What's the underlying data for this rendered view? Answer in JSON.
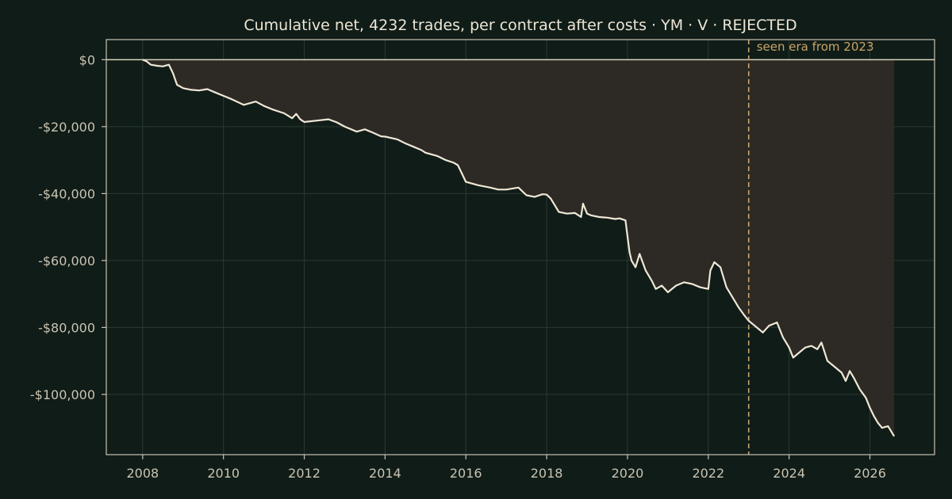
{
  "chart_data": {
    "type": "area",
    "title": "Cumulative net, 4232 trades, per contract after costs  ·  YM · V · REJECTED",
    "xlabel": "",
    "ylabel": "",
    "xlim": [
      2007.1,
      2027.6
    ],
    "ylim": [
      -118000,
      6000
    ],
    "grid": true,
    "x_ticks": [
      2008,
      2010,
      2012,
      2014,
      2016,
      2018,
      2020,
      2022,
      2024,
      2026
    ],
    "x_tick_labels": [
      "2008",
      "2010",
      "2012",
      "2014",
      "2016",
      "2018",
      "2020",
      "2022",
      "2024",
      "2026"
    ],
    "y_ticks": [
      0,
      -20000,
      -40000,
      -60000,
      -80000,
      -100000
    ],
    "y_tick_labels": [
      "$0",
      "-$20,000",
      "-$40,000",
      "-$60,000",
      "-$80,000",
      "-$100,000"
    ],
    "zero_line": 0,
    "annotation": {
      "x": 2023.0,
      "label": "seen era from 2023"
    },
    "series": [
      {
        "x": [
          2008.0,
          2008.1,
          2008.2,
          2008.35,
          2008.5,
          2008.65,
          2008.75,
          2008.85,
          2009.0,
          2009.2,
          2009.4,
          2009.6,
          2009.8,
          2010.0,
          2010.2,
          2010.5,
          2010.8,
          2011.0,
          2011.2,
          2011.5,
          2011.7,
          2011.8,
          2011.9,
          2012.0,
          2012.3,
          2012.6,
          2012.8,
          2013.0,
          2013.3,
          2013.5,
          2013.7,
          2013.9,
          2014.0,
          2014.3,
          2014.5,
          2014.7,
          2014.9,
          2015.0,
          2015.3,
          2015.5,
          2015.7,
          2015.8,
          2015.9,
          2016.0,
          2016.3,
          2016.6,
          2016.8,
          2017.0,
          2017.3,
          2017.5,
          2017.7,
          2017.9,
          2018.0,
          2018.1,
          2018.3,
          2018.5,
          2018.7,
          2018.85,
          2018.9,
          2019.0,
          2019.1,
          2019.3,
          2019.5,
          2019.7,
          2019.8,
          2019.95,
          2020.05,
          2020.1,
          2020.2,
          2020.3,
          2020.45,
          2020.6,
          2020.7,
          2020.85,
          2021.0,
          2021.2,
          2021.4,
          2021.6,
          2021.8,
          2022.0,
          2022.05,
          2022.15,
          2022.3,
          2022.45,
          2022.6,
          2022.75,
          2022.9,
          2023.0,
          2023.1,
          2023.2,
          2023.35,
          2023.5,
          2023.7,
          2023.85,
          2024.0,
          2024.1,
          2024.25,
          2024.4,
          2024.55,
          2024.7,
          2024.8,
          2024.95,
          2025.1,
          2025.3,
          2025.4,
          2025.5,
          2025.6,
          2025.75,
          2025.9,
          2026.0,
          2026.1,
          2026.2,
          2026.3,
          2026.45,
          2026.6
        ],
        "y": [
          0,
          -500,
          -1500,
          -1800,
          -2000,
          -1500,
          -4000,
          -7500,
          -8500,
          -9000,
          -9200,
          -8800,
          -9800,
          -10800,
          -11800,
          -13500,
          -12500,
          -13800,
          -14800,
          -16000,
          -17500,
          -16200,
          -17800,
          -18600,
          -18200,
          -17800,
          -18700,
          -20000,
          -21500,
          -20800,
          -21800,
          -22900,
          -23000,
          -23800,
          -25000,
          -26000,
          -27000,
          -27800,
          -28800,
          -30000,
          -30800,
          -31500,
          -34000,
          -36500,
          -37500,
          -38200,
          -38800,
          -38800,
          -38200,
          -40500,
          -41000,
          -40200,
          -40300,
          -41500,
          -45500,
          -46000,
          -45800,
          -47000,
          -43000,
          -46000,
          -46500,
          -47000,
          -47200,
          -47600,
          -47400,
          -48000,
          -57500,
          -60000,
          -62000,
          -58000,
          -63000,
          -66000,
          -68500,
          -67500,
          -69500,
          -67500,
          -66500,
          -67000,
          -68000,
          -68500,
          -63000,
          -60500,
          -62000,
          -68000,
          -71000,
          -74000,
          -76500,
          -78000,
          -79000,
          -80000,
          -81500,
          -79500,
          -78500,
          -83000,
          -86000,
          -89000,
          -87500,
          -86000,
          -85500,
          -86500,
          -84500,
          -90000,
          -91500,
          -93500,
          -96000,
          -93000,
          -95000,
          -98500,
          -101000,
          -104000,
          -106500,
          -108500,
          -110000,
          -109500,
          -112500
        ]
      }
    ]
  }
}
